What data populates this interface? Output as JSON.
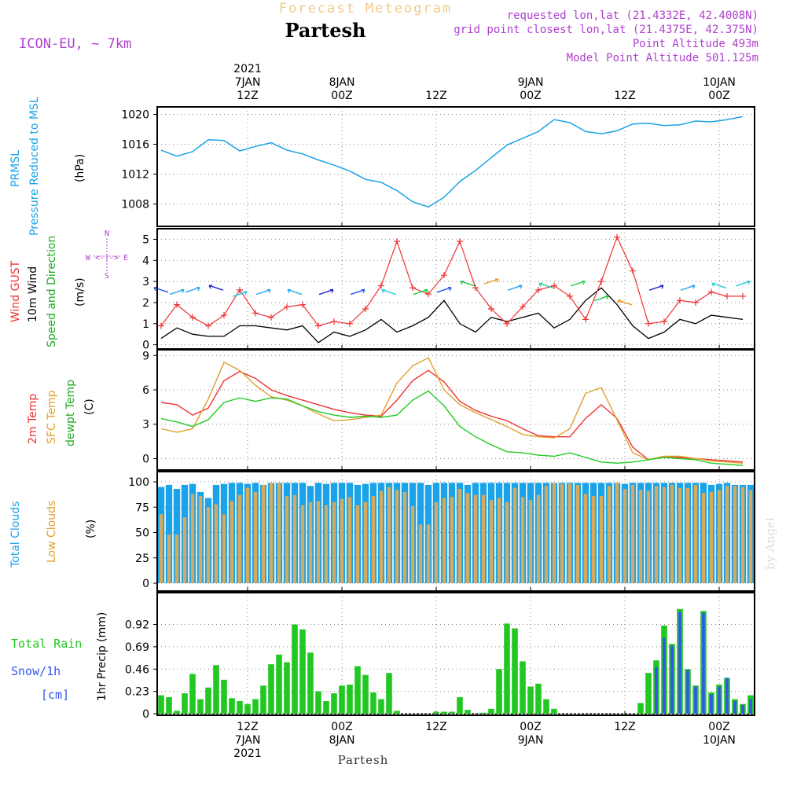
{
  "header": {
    "title": "Forecast Meteogram",
    "location": "Partesh",
    "model": "ICON-EU, ~ 7km",
    "requested": "requested lon,lat (21.4332E, 42.4008N)",
    "gridpoint": "grid point closest lon,lat (21.4375E, 42.375N)",
    "point_alt": "Point Altitude 493m",
    "model_alt": "Model Point Altitude 501.125m",
    "footer_location": "Partesh",
    "credit": "by Angel"
  },
  "time_axis": {
    "top_labels": [
      {
        "lines": [
          "2021",
          "7JAN",
          "12Z"
        ],
        "hour": 12
      },
      {
        "lines": [
          "8JAN",
          "00Z"
        ],
        "hour": 24
      },
      {
        "lines": [
          "12Z"
        ],
        "hour": 36
      },
      {
        "lines": [
          "9JAN",
          "00Z"
        ],
        "hour": 48
      },
      {
        "lines": [
          "12Z"
        ],
        "hour": 60
      },
      {
        "lines": [
          "10JAN",
          "00Z"
        ],
        "hour": 72
      }
    ],
    "bottom_labels": [
      {
        "lines": [
          "12Z",
          "7JAN",
          "2021"
        ],
        "hour": 12
      },
      {
        "lines": [
          "00Z",
          "8JAN"
        ],
        "hour": 24
      },
      {
        "lines": [
          "12Z"
        ],
        "hour": 36
      },
      {
        "lines": [
          "00Z",
          "9JAN"
        ],
        "hour": 48
      },
      {
        "lines": [
          "12Z"
        ],
        "hour": 60
      },
      {
        "lines": [
          "00Z",
          "10JAN"
        ],
        "hour": 72
      }
    ],
    "start_hour": 1,
    "end_hour": 76
  },
  "colors": {
    "pressure": "#1aa3e8",
    "gust": "#ee3333",
    "wind": "#000000",
    "temp2m": "#ee3333",
    "sfc": "#e0a030",
    "dewpt": "#22cc22",
    "total_clouds": "#1aa3e8",
    "low_clouds": "#d4aa60",
    "rain": "#22c822",
    "snow": "#3355ee",
    "purple": "#b040d0"
  },
  "panel_labels": {
    "pressure": [
      "PRMSL",
      "Pressure Reduced to MSL",
      "(hPa)"
    ],
    "wind": [
      "Wind GUST",
      "10m Wind",
      "Speed and Direction",
      "(m/s)"
    ],
    "compass": [
      "N",
      "W <-|-> E",
      "S"
    ],
    "temp": [
      "2m Temp",
      "SFC Temp",
      "dewpt Temp",
      "(C)"
    ],
    "clouds": [
      "Total Clouds",
      "Low Clouds",
      "(%)"
    ],
    "precip": [
      "Total  Rain",
      "Snow/1h",
      "[cm]",
      "1hr Precip (mm)"
    ]
  },
  "chart_data": [
    {
      "type": "line",
      "title": "PRMSL Pressure Reduced to MSL",
      "ylabel": "(hPa)",
      "ylim": [
        1005,
        1021
      ],
      "yticks": [
        1008,
        1012,
        1016,
        1020
      ],
      "x": [
        1,
        3,
        5,
        7,
        9,
        11,
        13,
        15,
        17,
        19,
        21,
        23,
        25,
        27,
        29,
        31,
        33,
        35,
        37,
        39,
        41,
        43,
        45,
        47,
        49,
        51,
        53,
        55,
        57,
        59,
        61,
        63,
        65,
        67,
        69,
        71,
        73,
        75
      ],
      "series": [
        {
          "name": "PRMSL",
          "values": [
            1015.2,
            1014.4,
            1015.0,
            1016.6,
            1016.5,
            1015.1,
            1015.7,
            1016.2,
            1015.2,
            1014.7,
            1013.9,
            1013.2,
            1012.4,
            1011.3,
            1010.9,
            1009.8,
            1008.3,
            1007.6,
            1008.9,
            1011.0,
            1012.5,
            1014.2,
            1015.9,
            1016.8,
            1017.7,
            1019.3,
            1018.9,
            1017.7,
            1017.4,
            1017.8,
            1018.7,
            1018.8,
            1018.5,
            1018.6,
            1019.1,
            1019.0,
            1019.3,
            1019.7
          ]
        }
      ]
    },
    {
      "type": "line",
      "title": "Wind GUST / 10m Wind Speed and Direction",
      "ylabel": "(m/s)",
      "ylim": [
        -0.2,
        5.5
      ],
      "yticks": [
        0,
        1,
        2,
        3,
        4,
        5
      ],
      "x": [
        1,
        3,
        5,
        7,
        9,
        11,
        13,
        15,
        17,
        19,
        21,
        23,
        25,
        27,
        29,
        31,
        33,
        35,
        37,
        39,
        41,
        43,
        45,
        47,
        49,
        51,
        53,
        55,
        57,
        59,
        61,
        63,
        65,
        67,
        69,
        71,
        73,
        75
      ],
      "series": [
        {
          "name": "Wind GUST",
          "values": [
            0.9,
            1.9,
            1.3,
            0.9,
            1.4,
            2.6,
            1.5,
            1.3,
            1.8,
            1.9,
            0.9,
            1.1,
            1.0,
            1.7,
            2.8,
            4.9,
            2.7,
            2.4,
            3.3,
            4.9,
            2.7,
            1.7,
            1.0,
            1.8,
            2.6,
            2.8,
            2.3,
            1.2,
            3.0,
            5.1,
            3.5,
            1.0,
            1.1,
            2.1,
            2.0,
            2.5,
            2.3,
            2.3
          ]
        },
        {
          "name": "10m Wind",
          "values": [
            0.3,
            0.8,
            0.5,
            0.4,
            0.4,
            0.9,
            0.9,
            0.8,
            0.7,
            0.9,
            0.1,
            0.6,
            0.4,
            0.7,
            1.2,
            0.6,
            0.9,
            1.3,
            2.1,
            1.0,
            0.6,
            1.3,
            1.1,
            1.3,
            1.5,
            0.8,
            1.2,
            2.1,
            2.7,
            1.9,
            0.9,
            0.3,
            0.6,
            1.2,
            1.0,
            1.4,
            1.3,
            1.2
          ]
        }
      ],
      "barbs": [
        {
          "x": 1,
          "y": 2.6,
          "color": "#2255ee"
        },
        {
          "x": 3,
          "y": 2.5,
          "color": "#22aaee"
        },
        {
          "x": 5,
          "y": 2.6,
          "color": "#22aaee"
        },
        {
          "x": 8,
          "y": 2.7,
          "color": "#2222cc"
        },
        {
          "x": 11,
          "y": 2.4,
          "color": "#22ccdd"
        },
        {
          "x": 14,
          "y": 2.5,
          "color": "#22aaee"
        },
        {
          "x": 18,
          "y": 2.5,
          "color": "#22aaee"
        },
        {
          "x": 22,
          "y": 2.5,
          "color": "#2222cc"
        },
        {
          "x": 26,
          "y": 2.5,
          "color": "#2255ee"
        },
        {
          "x": 30,
          "y": 2.5,
          "color": "#22ccdd"
        },
        {
          "x": 34,
          "y": 2.5,
          "color": "#22cc44"
        },
        {
          "x": 37,
          "y": 2.6,
          "color": "#2255ee"
        },
        {
          "x": 40,
          "y": 2.9,
          "color": "#22cc44"
        },
        {
          "x": 43,
          "y": 3.0,
          "color": "#ee9922"
        },
        {
          "x": 46,
          "y": 2.7,
          "color": "#22aaee"
        },
        {
          "x": 50,
          "y": 2.8,
          "color": "#22ccaa"
        },
        {
          "x": 54,
          "y": 2.9,
          "color": "#22cc44"
        },
        {
          "x": 57,
          "y": 2.2,
          "color": "#22cc44"
        },
        {
          "x": 60,
          "y": 2.0,
          "color": "#ee9922"
        },
        {
          "x": 64,
          "y": 2.7,
          "color": "#2222cc"
        },
        {
          "x": 68,
          "y": 2.7,
          "color": "#22aaee"
        },
        {
          "x": 72,
          "y": 2.8,
          "color": "#22ccdd"
        },
        {
          "x": 75,
          "y": 2.9,
          "color": "#22ccdd"
        }
      ]
    },
    {
      "type": "line",
      "title": "2m Temp / SFC Temp / dewpt Temp",
      "ylabel": "(C)",
      "ylim": [
        -1,
        9.5
      ],
      "yticks": [
        0,
        3,
        6,
        9
      ],
      "x": [
        1,
        3,
        5,
        7,
        9,
        11,
        13,
        15,
        17,
        19,
        21,
        23,
        25,
        27,
        29,
        31,
        33,
        35,
        37,
        39,
        41,
        43,
        45,
        47,
        49,
        51,
        53,
        55,
        57,
        59,
        61,
        63,
        65,
        67,
        69,
        71,
        73,
        75
      ],
      "series": [
        {
          "name": "2m Temp",
          "values": [
            4.9,
            4.7,
            3.8,
            4.4,
            6.8,
            7.6,
            7.0,
            6.0,
            5.5,
            5.1,
            4.7,
            4.3,
            4.0,
            3.8,
            3.7,
            5.1,
            6.8,
            7.7,
            6.7,
            5.0,
            4.2,
            3.7,
            3.3,
            2.6,
            2.0,
            1.9,
            1.9,
            3.5,
            4.7,
            3.5,
            1.0,
            -0.1,
            0.2,
            0.1,
            0.0,
            -0.1,
            -0.2,
            -0.3
          ]
        },
        {
          "name": "SFC Temp",
          "values": [
            2.6,
            2.3,
            2.6,
            5.2,
            8.4,
            7.7,
            6.4,
            5.4,
            5.1,
            4.6,
            3.9,
            3.3,
            3.4,
            3.6,
            3.8,
            6.6,
            8.1,
            8.8,
            6.0,
            4.7,
            4.0,
            3.4,
            2.8,
            2.1,
            1.9,
            1.8,
            2.6,
            5.7,
            6.2,
            3.4,
            0.5,
            -0.1,
            0.2,
            0.2,
            0.0,
            -0.2,
            -0.3,
            -0.4
          ]
        },
        {
          "name": "dewpt Temp",
          "values": [
            3.5,
            3.2,
            2.8,
            3.4,
            4.9,
            5.3,
            5.0,
            5.3,
            5.2,
            4.6,
            4.1,
            3.8,
            3.6,
            3.7,
            3.6,
            3.8,
            5.1,
            5.9,
            4.6,
            2.8,
            1.9,
            1.2,
            0.6,
            0.5,
            0.3,
            0.2,
            0.5,
            0.1,
            -0.3,
            -0.4,
            -0.3,
            -0.1,
            0.1,
            0.0,
            -0.1,
            -0.4,
            -0.5,
            -0.6
          ]
        }
      ]
    },
    {
      "type": "bar",
      "title": "Total Clouds / Low Clouds",
      "ylabel": "(%)",
      "ylim": [
        0,
        100
      ],
      "yticks": [
        0,
        25,
        50,
        75,
        100
      ],
      "x": [
        1,
        2,
        3,
        4,
        5,
        6,
        7,
        8,
        9,
        10,
        11,
        12,
        13,
        14,
        15,
        16,
        17,
        18,
        19,
        20,
        21,
        22,
        23,
        24,
        25,
        26,
        27,
        28,
        29,
        30,
        31,
        32,
        33,
        34,
        35,
        36,
        37,
        38,
        39,
        40,
        41,
        42,
        43,
        44,
        45,
        46,
        47,
        48,
        49,
        50,
        51,
        52,
        53,
        54,
        55,
        56,
        57,
        58,
        59,
        60,
        61,
        62,
        63,
        64,
        65,
        66,
        67,
        68,
        69,
        70,
        71,
        72,
        73,
        74,
        75,
        76
      ],
      "series": [
        {
          "name": "Total Clouds",
          "values": [
            95,
            97,
            93,
            97,
            98,
            90,
            84,
            97,
            98,
            99,
            99,
            98,
            99,
            97,
            99,
            99,
            99,
            99,
            99,
            96,
            99,
            98,
            99,
            99,
            99,
            97,
            98,
            99,
            99,
            99,
            99,
            99,
            99,
            99,
            97,
            99,
            99,
            99,
            99,
            97,
            99,
            99,
            99,
            99,
            99,
            99,
            99,
            99,
            99,
            99,
            99,
            99,
            99,
            99,
            99,
            99,
            99,
            99,
            99,
            98,
            99,
            99,
            99,
            99,
            99,
            99,
            99,
            99,
            99,
            99,
            97,
            98,
            99,
            97,
            97,
            97
          ]
        },
        {
          "name": "Low Clouds",
          "values": [
            68,
            48,
            48,
            65,
            88,
            86,
            75,
            78,
            68,
            81,
            87,
            94,
            90,
            97,
            99,
            99,
            86,
            87,
            77,
            80,
            81,
            77,
            80,
            83,
            85,
            77,
            80,
            86,
            91,
            95,
            92,
            90,
            76,
            58,
            58,
            80,
            84,
            85,
            93,
            89,
            87,
            87,
            82,
            84,
            80,
            94,
            85,
            82,
            87,
            96,
            99,
            98,
            98,
            97,
            88,
            86,
            86,
            96,
            99,
            93,
            97,
            92,
            91,
            96,
            95,
            97,
            94,
            94,
            97,
            89,
            90,
            92,
            96,
            96,
            95,
            92
          ]
        }
      ]
    },
    {
      "type": "bar",
      "title": "1hr Precip (mm)",
      "ylabel": "1hr Precip (mm)",
      "ylim": [
        0,
        1.2
      ],
      "yticks": [
        0,
        0.23,
        0.46,
        0.69,
        0.92
      ],
      "x": [
        1,
        2,
        3,
        4,
        5,
        6,
        7,
        8,
        9,
        10,
        11,
        12,
        13,
        14,
        15,
        16,
        17,
        18,
        19,
        20,
        21,
        22,
        23,
        24,
        25,
        26,
        27,
        28,
        29,
        30,
        31,
        32,
        33,
        34,
        35,
        36,
        37,
        38,
        39,
        40,
        41,
        42,
        43,
        44,
        45,
        46,
        47,
        48,
        49,
        50,
        51,
        52,
        53,
        54,
        55,
        56,
        57,
        58,
        59,
        60,
        61,
        62,
        63,
        64,
        65,
        66,
        67,
        68,
        69,
        70,
        71,
        72,
        73,
        74,
        75,
        76
      ],
      "series": [
        {
          "name": "Total Rain",
          "values": [
            0.19,
            0.17,
            0.03,
            0.21,
            0.41,
            0.15,
            0.27,
            0.5,
            0.35,
            0.16,
            0.13,
            0.1,
            0.15,
            0.29,
            0.51,
            0.61,
            0.53,
            0.92,
            0.87,
            0.63,
            0.23,
            0.13,
            0.21,
            0.29,
            0.3,
            0.49,
            0.4,
            0.22,
            0.15,
            0.42,
            0.03,
            0.0,
            0.0,
            0.0,
            0.0,
            0.02,
            0.02,
            0.02,
            0.17,
            0.04,
            0.0,
            0.01,
            0.05,
            0.46,
            0.93,
            0.88,
            0.54,
            0.28,
            0.31,
            0.15,
            0.05,
            0.0,
            0.0,
            0.0,
            0.0,
            0.0,
            0.0,
            0.0,
            0.0,
            0.0,
            0.0,
            0.11,
            0.42,
            0.55,
            0.91,
            0.72,
            1.08,
            0.46,
            0.29,
            1.06,
            0.22,
            0.3,
            0.37,
            0.15,
            0.1,
            0.19
          ]
        },
        {
          "name": "Snow/1h",
          "values": [
            0,
            0,
            0,
            0,
            0,
            0,
            0,
            0,
            0,
            0,
            0,
            0,
            0,
            0,
            0,
            0,
            0,
            0,
            0,
            0,
            0,
            0,
            0,
            0,
            0,
            0,
            0,
            0,
            0,
            0,
            0,
            0,
            0,
            0,
            0,
            0,
            0,
            0,
            0,
            0,
            0,
            0,
            0,
            0,
            0,
            0,
            0,
            0,
            0,
            0,
            0,
            0,
            0,
            0,
            0,
            0,
            0,
            0,
            0,
            0,
            0,
            0,
            0,
            0.48,
            0.78,
            0.7,
            1.05,
            0.45,
            0.28,
            1.04,
            0.2,
            0.28,
            0.37,
            0.13,
            0.09,
            0.15
          ]
        }
      ]
    }
  ]
}
